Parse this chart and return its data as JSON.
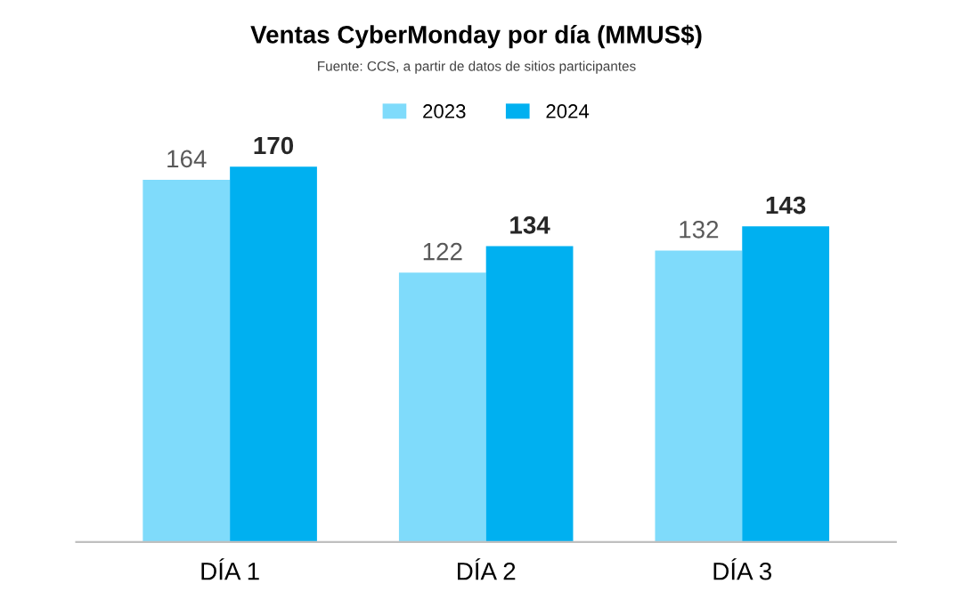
{
  "chart_data": {
    "type": "bar",
    "title": "Ventas CyberMonday por día (MMUS$)",
    "annotations": [
      "Fuente: CCS, a partir de datos de sitios participantes"
    ],
    "categories": [
      "DÍA 1",
      "DÍA 2",
      "DÍA 3"
    ],
    "series": [
      {
        "name": "2023",
        "color": "#7fdbfb",
        "values": [
          164,
          122,
          132
        ]
      },
      {
        "name": "2024",
        "color": "#00b0f0",
        "values": [
          170,
          134,
          143
        ]
      }
    ],
    "data_labels": true,
    "legend": "top"
  }
}
